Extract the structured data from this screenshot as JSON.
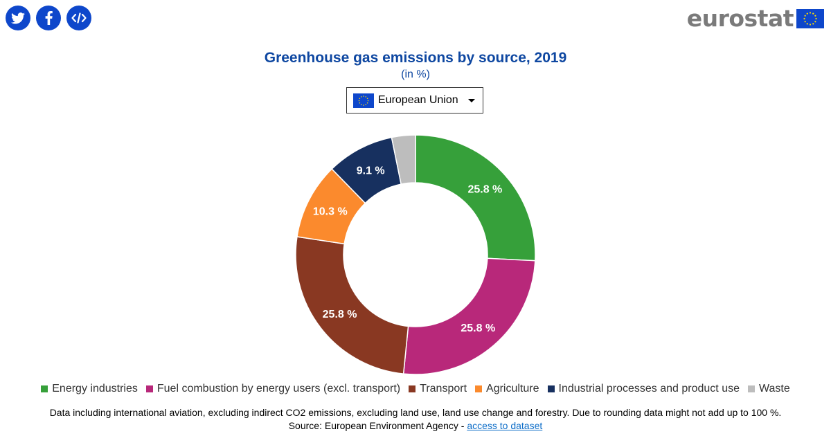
{
  "share": {
    "twitter_icon": "twitter-icon",
    "facebook_icon": "facebook-icon",
    "embed_icon": "code-embed-icon"
  },
  "logo": {
    "text": "eurostat",
    "flag_icon": "eu-flag-icon"
  },
  "geo_selector": {
    "value": "European Union",
    "flag_icon": "eu-flag-icon"
  },
  "footnote": {
    "note": "Data including international aviation, excluding indirect CO2 emissions, excluding land use, land use change and forestry. Due to rounding data might not add up to 100 %.",
    "source_prefix": "Source: European Environment Agency - ",
    "source_link": "access to dataset"
  },
  "chart_data": {
    "type": "pie",
    "donut": true,
    "title": "Greenhouse gas emissions by source, 2019",
    "subtitle": "(in %)",
    "unit": "%",
    "legend_position": "bottom",
    "categories": [
      "Energy industries",
      "Fuel combustion by energy users (excl. transport)",
      "Transport",
      "Agriculture",
      "Industrial processes and product use",
      "Waste"
    ],
    "values": [
      25.8,
      25.8,
      25.8,
      10.3,
      9.1,
      3.2
    ],
    "data_labels": [
      "25.8 %",
      "25.8 %",
      "25.8 %",
      "10.3 %",
      "9.1 %",
      ""
    ],
    "colors": [
      "#36a03a",
      "#b8287a",
      "#893822",
      "#fb8a2d",
      "#17305f",
      "#bdbdbd"
    ]
  }
}
